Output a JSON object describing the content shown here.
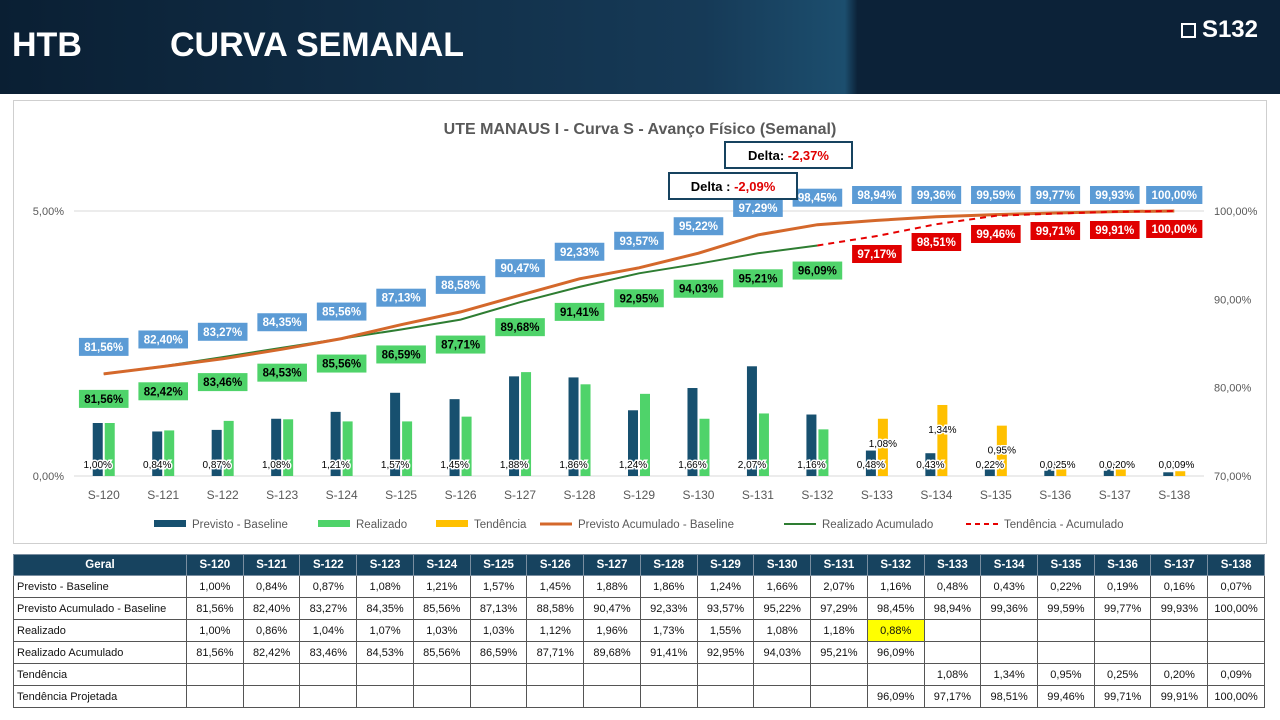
{
  "header": {
    "brand": "HTB",
    "title": "CURVA SEMANAL",
    "week_code": "S132"
  },
  "colors": {
    "previsto": "#17506f",
    "realizado": "#4fd36a",
    "tendencia": "#ffc000",
    "previsto_acumulado": "#d4682b",
    "realizado_acumulado": "#2e7d32",
    "tendencia_acumulado": "#e60000",
    "label_previsto": "#5b9bd5",
    "label_realizado": "#4fd36a",
    "label_tendencia": "#e00000",
    "delta_border": "#17435f"
  },
  "chart_data": {
    "type": "bar",
    "title": "UTE MANAUS I - Curva S - Avanço Físico (Semanal)",
    "categories": [
      "S-120",
      "S-121",
      "S-122",
      "S-123",
      "S-124",
      "S-125",
      "S-126",
      "S-127",
      "S-128",
      "S-129",
      "S-130",
      "S-131",
      "S-132",
      "S-133",
      "S-134",
      "S-135",
      "S-136",
      "S-137",
      "S-138"
    ],
    "y_left": {
      "min": 0,
      "max": 5,
      "ticks": [
        "0,00%",
        "5,00%"
      ]
    },
    "y_right": {
      "min": 70,
      "max": 100,
      "ticks": [
        "70,00%",
        "80,00%",
        "90,00%",
        "100,00%"
      ]
    },
    "series": [
      {
        "name": "Previsto - Baseline",
        "kind": "bar",
        "axis": "left",
        "values": [
          1.0,
          0.84,
          0.87,
          1.08,
          1.21,
          1.57,
          1.45,
          1.88,
          1.86,
          1.24,
          1.66,
          2.07,
          1.16,
          0.48,
          0.43,
          0.22,
          0.19,
          0.16,
          0.07
        ],
        "labels": [
          "1,00%",
          "0,84%",
          "0,87%",
          "1,08%",
          "1,21%",
          "1,57%",
          "1,45%",
          "1,88%",
          "1,86%",
          "1,24%",
          "1,66%",
          "2,07%",
          "1,16%",
          "0,48%",
          "0,43%",
          "0,22%",
          "0,19",
          "0,16",
          "0,07"
        ]
      },
      {
        "name": "Realizado",
        "kind": "bar",
        "axis": "left",
        "values": [
          1.0,
          0.86,
          1.04,
          1.07,
          1.03,
          1.03,
          1.12,
          1.96,
          1.73,
          1.55,
          1.08,
          1.18,
          0.88,
          null,
          null,
          null,
          null,
          null,
          null
        ]
      },
      {
        "name": "Tendência",
        "kind": "bar",
        "axis": "left",
        "values": [
          null,
          null,
          null,
          null,
          null,
          null,
          null,
          null,
          null,
          null,
          null,
          null,
          null,
          1.08,
          1.34,
          0.95,
          0.25,
          0.2,
          0.09
        ],
        "labels": [
          "",
          "",
          "",
          "",
          "",
          "",
          "",
          "",
          "",
          "",
          "",
          "",
          "",
          "1,08%",
          "1,34%",
          "0,95%",
          "0,25%",
          "0,20%",
          "0,09%"
        ]
      },
      {
        "name": "Previsto Acumulado - Baseline",
        "kind": "line",
        "axis": "right",
        "values": [
          81.56,
          82.4,
          83.27,
          84.35,
          85.56,
          87.13,
          88.58,
          90.47,
          92.33,
          93.57,
          95.22,
          97.29,
          98.45,
          98.94,
          99.36,
          99.59,
          99.77,
          99.93,
          100.0
        ],
        "labels": [
          "81,56%",
          "82,40%",
          "83,27%",
          "84,35%",
          "85,56%",
          "87,13%",
          "88,58%",
          "90,47%",
          "92,33%",
          "93,57%",
          "95,22%",
          "97,29%",
          "98,45%",
          "98,94%",
          "99,36%",
          "99,59%",
          "99,77%",
          "99,93%",
          "100,00%"
        ]
      },
      {
        "name": "Realizado Acumulado",
        "kind": "line",
        "axis": "right",
        "values": [
          81.56,
          82.42,
          83.46,
          84.53,
          85.56,
          86.59,
          87.71,
          89.68,
          91.41,
          92.95,
          94.03,
          95.21,
          96.09,
          null,
          null,
          null,
          null,
          null,
          null
        ],
        "labels": [
          "81,56%",
          "82,42%",
          "83,46%",
          "84,53%",
          "85,56%",
          "86,59%",
          "87,71%",
          "89,68%",
          "91,41%",
          "92,95%",
          "94,03%",
          "95,21%",
          "96,09%",
          "",
          "",
          "",
          "",
          "",
          ""
        ]
      },
      {
        "name": "Tendência - Acumulado",
        "kind": "line-dashed",
        "axis": "right",
        "values": [
          null,
          null,
          null,
          null,
          null,
          null,
          null,
          null,
          null,
          null,
          null,
          null,
          96.09,
          97.17,
          98.51,
          99.46,
          99.71,
          99.91,
          100.0
        ],
        "labels": [
          "",
          "",
          "",
          "",
          "",
          "",
          "",
          "",
          "",
          "",
          "",
          "",
          "",
          "97,17%",
          "98,51%",
          "99,46%",
          "99,71%",
          "99,91%",
          "100,00%"
        ]
      }
    ],
    "annotations": [
      {
        "prefix": "Delta",
        "sep": " : ",
        "value": "-2,09%"
      },
      {
        "prefix": "Delta",
        "sep": ": ",
        "value": "-2,37%"
      }
    ],
    "legend_position": "bottom",
    "grid": true
  },
  "table": {
    "header_label": "Geral",
    "columns": [
      "S-120",
      "S-121",
      "S-122",
      "S-123",
      "S-124",
      "S-125",
      "S-126",
      "S-127",
      "S-128",
      "S-129",
      "S-130",
      "S-131",
      "S-132",
      "S-133",
      "S-134",
      "S-135",
      "S-136",
      "S-137",
      "S-138"
    ],
    "rows": [
      {
        "label": "Previsto - Baseline",
        "cells": [
          "1,00%",
          "0,84%",
          "0,87%",
          "1,08%",
          "1,21%",
          "1,57%",
          "1,45%",
          "1,88%",
          "1,86%",
          "1,24%",
          "1,66%",
          "2,07%",
          "1,16%",
          "0,48%",
          "0,43%",
          "0,22%",
          "0,19%",
          "0,16%",
          "0,07%"
        ]
      },
      {
        "label": "Previsto Acumulado - Baseline",
        "cells": [
          "81,56%",
          "82,40%",
          "83,27%",
          "84,35%",
          "85,56%",
          "87,13%",
          "88,58%",
          "90,47%",
          "92,33%",
          "93,57%",
          "95,22%",
          "97,29%",
          "98,45%",
          "98,94%",
          "99,36%",
          "99,59%",
          "99,77%",
          "99,93%",
          "100,00%"
        ]
      },
      {
        "label": "Realizado",
        "cells": [
          "1,00%",
          "0,86%",
          "1,04%",
          "1,07%",
          "1,03%",
          "1,03%",
          "1,12%",
          "1,96%",
          "1,73%",
          "1,55%",
          "1,08%",
          "1,18%",
          "0,88%",
          "",
          "",
          "",
          "",
          "",
          ""
        ],
        "highlight_index": 12
      },
      {
        "label": "Realizado Acumulado",
        "cells": [
          "81,56%",
          "82,42%",
          "83,46%",
          "84,53%",
          "85,56%",
          "86,59%",
          "87,71%",
          "89,68%",
          "91,41%",
          "92,95%",
          "94,03%",
          "95,21%",
          "96,09%",
          "",
          "",
          "",
          "",
          "",
          ""
        ]
      },
      {
        "label": "Tendência",
        "cells": [
          "",
          "",
          "",
          "",
          "",
          "",
          "",
          "",
          "",
          "",
          "",
          "",
          "",
          "1,08%",
          "1,34%",
          "0,95%",
          "0,25%",
          "0,20%",
          "0,09%"
        ]
      },
      {
        "label": "Tendência Projetada",
        "cells": [
          "",
          "",
          "",
          "",
          "",
          "",
          "",
          "",
          "",
          "",
          "",
          "",
          "96,09%",
          "97,17%",
          "98,51%",
          "99,46%",
          "99,71%",
          "99,91%",
          "100,00%"
        ]
      }
    ]
  }
}
